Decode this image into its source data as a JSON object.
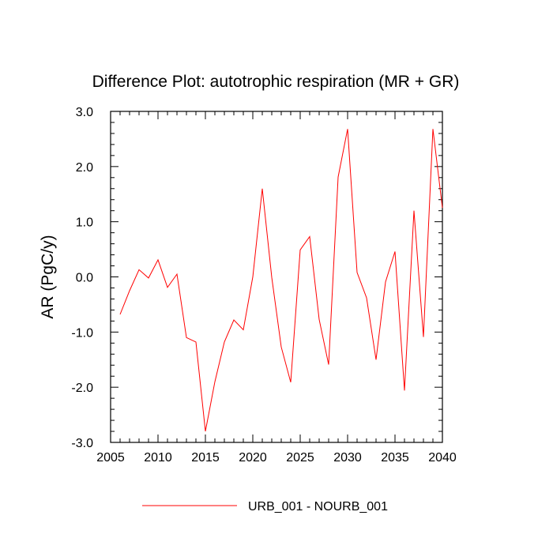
{
  "chart_data": {
    "type": "line",
    "title": "Difference Plot: autotrophic respiration (MR + GR)",
    "xlabel": "",
    "ylabel": "AR  (PgC/y)",
    "xlim": [
      2005,
      2040
    ],
    "ylim": [
      -3.0,
      3.0
    ],
    "x_ticks": [
      2005,
      2010,
      2015,
      2020,
      2025,
      2030,
      2035,
      2040
    ],
    "x_tick_labels": [
      "2005",
      "2010",
      "2015",
      "2020",
      "2025",
      "2030",
      "2035",
      "2040"
    ],
    "y_ticks": [
      -3.0,
      -2.0,
      -1.0,
      0.0,
      1.0,
      2.0,
      3.0
    ],
    "y_tick_labels": [
      "-3.0",
      "-2.0",
      "-1.0",
      "0.0",
      "1.0",
      "2.0",
      "3.0"
    ],
    "legend_position": "bottom",
    "series": [
      {
        "name": "URB_001 - NOURB_001",
        "color": "#ff0000",
        "x": [
          2006,
          2007,
          2008,
          2009,
          2010,
          2011,
          2012,
          2013,
          2014,
          2015,
          2016,
          2017,
          2018,
          2019,
          2020,
          2021,
          2022,
          2023,
          2024,
          2025,
          2026,
          2027,
          2028,
          2029,
          2030,
          2031,
          2032,
          2033,
          2034,
          2035,
          2036,
          2037,
          2038,
          2039,
          2040
        ],
        "values": [
          -0.68,
          -0.25,
          0.13,
          -0.02,
          0.31,
          -0.19,
          0.05,
          -1.1,
          -1.18,
          -2.8,
          -1.9,
          -1.18,
          -0.78,
          -0.96,
          0.0,
          1.6,
          -0.01,
          -1.27,
          -1.91,
          0.49,
          0.73,
          -0.77,
          -1.59,
          1.81,
          2.68,
          0.08,
          -0.38,
          -1.5,
          -0.09,
          0.46,
          -2.06,
          1.2,
          -1.09,
          2.68,
          1.25
        ]
      }
    ]
  }
}
